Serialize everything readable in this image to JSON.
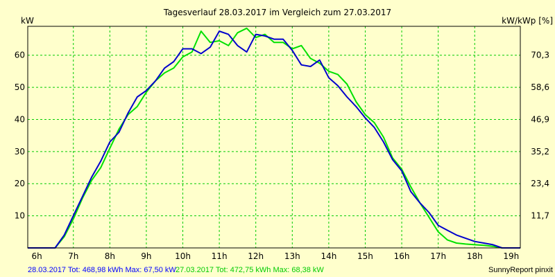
{
  "colors": {
    "background": "#ffffcc",
    "grid": "#00cc00",
    "series_1": "#0000cc",
    "series_2": "#00e000",
    "frame": "#000000"
  },
  "chart_data": {
    "type": "line",
    "title": "Tagesverlauf 28.03.2017 im Vergleich zum 27.03.2017",
    "ylabel_left": "kW",
    "ylabel_right": "kW/kWp [%]",
    "x_ticks": [
      "6h",
      "7h",
      "8h",
      "9h",
      "10h",
      "11h",
      "12h",
      "13h",
      "14h",
      "15h",
      "16h",
      "17h",
      "18h",
      "19h"
    ],
    "y_ticks_left": [
      "10",
      "20",
      "30",
      "40",
      "50",
      "60"
    ],
    "y_ticks_right": [
      "11,7",
      "23,4",
      "35,2",
      "46,9",
      "58,6",
      "70,3"
    ],
    "xlim": [
      5.75,
      19.25
    ],
    "ylim": [
      0,
      69
    ],
    "grid": true,
    "series": [
      {
        "name": "28.03.2017",
        "color": "#0000cc",
        "points": [
          [
            5.75,
            0
          ],
          [
            6.5,
            0
          ],
          [
            6.75,
            4
          ],
          [
            7.0,
            10
          ],
          [
            7.25,
            16
          ],
          [
            7.5,
            22
          ],
          [
            7.75,
            27
          ],
          [
            8.0,
            33
          ],
          [
            8.25,
            36
          ],
          [
            8.5,
            42
          ],
          [
            8.75,
            47
          ],
          [
            9.0,
            49
          ],
          [
            9.25,
            52
          ],
          [
            9.5,
            56
          ],
          [
            9.75,
            58
          ],
          [
            10.0,
            62
          ],
          [
            10.25,
            62
          ],
          [
            10.5,
            60.5
          ],
          [
            10.75,
            62.5
          ],
          [
            11.0,
            67.5
          ],
          [
            11.25,
            66.5
          ],
          [
            11.5,
            63
          ],
          [
            11.75,
            61
          ],
          [
            12.0,
            66.5
          ],
          [
            12.25,
            66
          ],
          [
            12.5,
            65
          ],
          [
            12.75,
            65
          ],
          [
            13.0,
            61.5
          ],
          [
            13.25,
            57
          ],
          [
            13.5,
            56.5
          ],
          [
            13.75,
            58.5
          ],
          [
            14.0,
            53
          ],
          [
            14.25,
            50.5
          ],
          [
            14.5,
            47
          ],
          [
            14.75,
            44
          ],
          [
            15.0,
            40.5
          ],
          [
            15.25,
            37.5
          ],
          [
            15.5,
            33
          ],
          [
            15.75,
            27.5
          ],
          [
            16.0,
            24
          ],
          [
            16.25,
            17.5
          ],
          [
            16.5,
            14
          ],
          [
            16.75,
            11
          ],
          [
            17.0,
            7
          ],
          [
            17.25,
            5.5
          ],
          [
            17.5,
            4
          ],
          [
            17.75,
            3
          ],
          [
            18.0,
            2
          ],
          [
            18.25,
            1.5
          ],
          [
            18.5,
            1
          ],
          [
            18.75,
            0
          ],
          [
            19.25,
            0
          ]
        ]
      },
      {
        "name": "27.03.2017",
        "color": "#00e000",
        "points": [
          [
            5.75,
            0
          ],
          [
            6.5,
            0
          ],
          [
            6.75,
            3.5
          ],
          [
            7.0,
            9
          ],
          [
            7.25,
            15.5
          ],
          [
            7.5,
            21
          ],
          [
            7.75,
            25
          ],
          [
            8.0,
            31
          ],
          [
            8.25,
            37
          ],
          [
            8.5,
            41.5
          ],
          [
            8.75,
            44
          ],
          [
            9.0,
            48.5
          ],
          [
            9.25,
            52
          ],
          [
            9.5,
            54.5
          ],
          [
            9.75,
            56
          ],
          [
            10.0,
            59.5
          ],
          [
            10.25,
            61
          ],
          [
            10.5,
            67.5
          ],
          [
            10.75,
            64
          ],
          [
            11.0,
            64.5
          ],
          [
            11.25,
            63
          ],
          [
            11.5,
            67
          ],
          [
            11.75,
            68.4
          ],
          [
            12.0,
            65.5
          ],
          [
            12.25,
            66.5
          ],
          [
            12.5,
            64
          ],
          [
            12.75,
            64
          ],
          [
            13.0,
            62
          ],
          [
            13.25,
            63
          ],
          [
            13.5,
            59
          ],
          [
            13.75,
            57.5
          ],
          [
            14.0,
            55
          ],
          [
            14.25,
            54
          ],
          [
            14.5,
            51
          ],
          [
            14.75,
            45.5
          ],
          [
            15.0,
            41.5
          ],
          [
            15.25,
            39
          ],
          [
            15.5,
            34.5
          ],
          [
            15.75,
            28
          ],
          [
            16.0,
            24.5
          ],
          [
            16.25,
            19
          ],
          [
            16.5,
            14
          ],
          [
            16.75,
            9.5
          ],
          [
            17.0,
            5
          ],
          [
            17.25,
            2.5
          ],
          [
            17.5,
            1.5
          ],
          [
            17.75,
            1.2
          ],
          [
            18.0,
            1
          ],
          [
            18.25,
            0.8
          ],
          [
            18.5,
            0.5
          ],
          [
            18.75,
            0
          ],
          [
            19.25,
            0
          ]
        ]
      }
    ]
  },
  "footer": {
    "series_1_summary": "28.03.2017 Tot: 468,98 kWh Max: 67,50 kW",
    "series_2_summary": "27.03.2017 Tot: 472,75 kWh Max: 68,38 kW",
    "credit": "SunnyReport pinxit"
  }
}
